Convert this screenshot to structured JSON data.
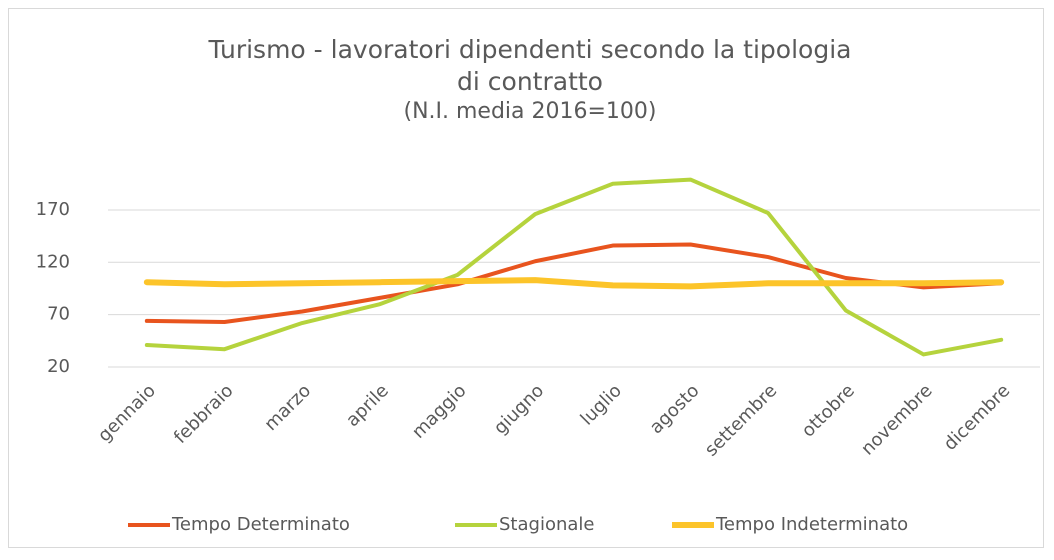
{
  "chart_data": {
    "type": "line",
    "title": "Turismo - lavoratori dipendenti secondo la tipologia di contratto",
    "subtitle": "(N.I. media 2016=100)",
    "categories": [
      "gennaio",
      "febbraio",
      "marzo",
      "aprile",
      "maggio",
      "giugno",
      "luglio",
      "agosto",
      "settembre",
      "ottobre",
      "novembre",
      "dicembre"
    ],
    "series": [
      {
        "name": "Tempo Determinato",
        "color": "#e8541e",
        "values": [
          64,
          63,
          73,
          86,
          99,
          121,
          136,
          137,
          125,
          105,
          96,
          100
        ]
      },
      {
        "name": "Stagionale",
        "color": "#b5d33d",
        "values": [
          41,
          37,
          62,
          80,
          108,
          166,
          195,
          199,
          167,
          74,
          32,
          46
        ]
      },
      {
        "name": "Tempo Indeterminato",
        "color": "#fcc42a",
        "values": [
          101,
          99,
          100,
          101,
          102,
          103,
          98,
          97,
          100,
          100,
          100,
          101
        ]
      }
    ],
    "ylim": [
      20,
      200
    ],
    "yticks": [
      20,
      70,
      120,
      170
    ],
    "grid": true,
    "legend": "bottom"
  }
}
